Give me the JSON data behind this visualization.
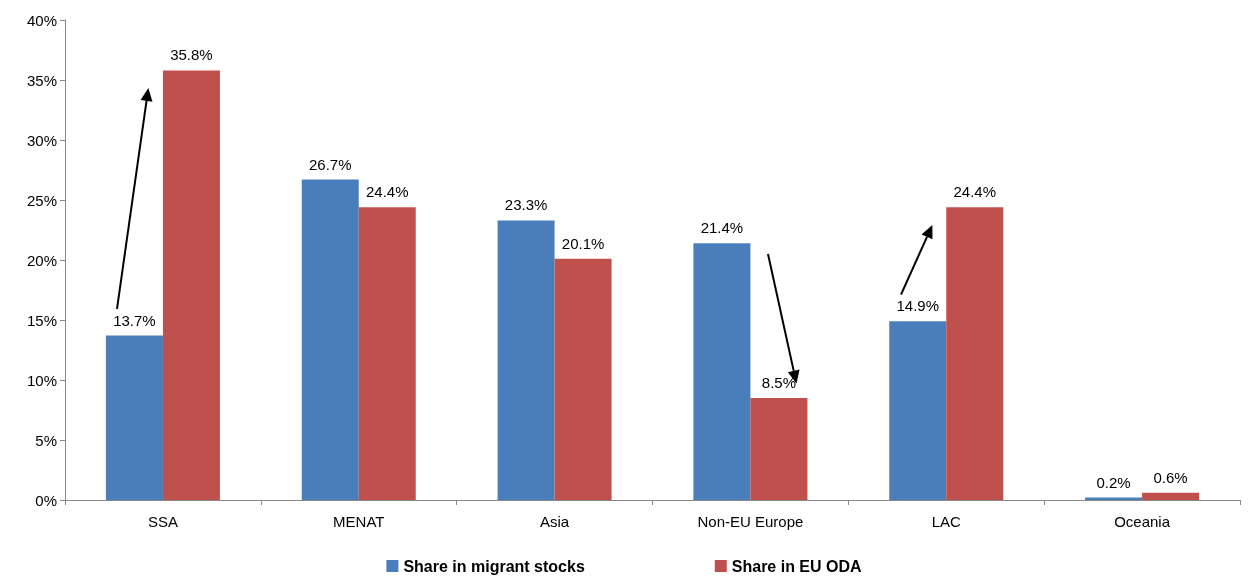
{
  "chart_data": {
    "type": "bar",
    "categories": [
      "SSA",
      "MENAT",
      "Asia",
      "Non-EU Europe",
      "LAC",
      "Oceania"
    ],
    "series": [
      {
        "name": "Share in migrant stocks",
        "color": "#4a7ebb",
        "values": [
          13.7,
          26.7,
          23.3,
          21.4,
          14.9,
          0.2
        ],
        "value_labels": [
          "13.7%",
          "26.7%",
          "23.3%",
          "21.4%",
          "14.9%",
          "0.2%"
        ]
      },
      {
        "name": "Share in EU ODA",
        "color": "#c0504d",
        "values": [
          35.8,
          24.4,
          20.1,
          8.5,
          24.4,
          0.6
        ],
        "value_labels": [
          "35.8%",
          "24.4%",
          "20.1%",
          "8.5%",
          "24.4%",
          "0.6%"
        ]
      }
    ],
    "ylim": [
      0,
      40
    ],
    "yticks": [
      {
        "value": 0,
        "label": "0%"
      },
      {
        "value": 5,
        "label": "5%"
      },
      {
        "value": 10,
        "label": "10%"
      },
      {
        "value": 15,
        "label": "15%"
      },
      {
        "value": 20,
        "label": "20%"
      },
      {
        "value": 25,
        "label": "25%"
      },
      {
        "value": 30,
        "label": "30%"
      },
      {
        "value": 35,
        "label": "35%"
      },
      {
        "value": 40,
        "label": "40%"
      }
    ],
    "grid": false,
    "legend": "bottom"
  }
}
